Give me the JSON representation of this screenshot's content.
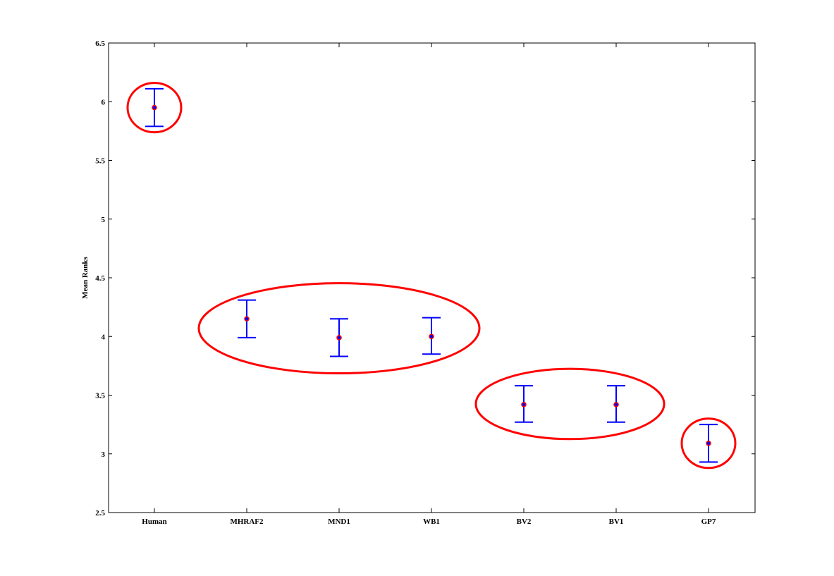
{
  "chart_data": {
    "type": "scatter",
    "title": "",
    "xlabel": "",
    "ylabel": "Mean Ranks",
    "ylim": [
      2.5,
      6.5
    ],
    "yticks": [
      "2.5",
      "3",
      "3.5",
      "4",
      "4.5",
      "5",
      "5.5",
      "6",
      "6.5"
    ],
    "categories": [
      "Human",
      "MHRAF2",
      "MND1",
      "WB1",
      "BV2",
      "BV1",
      "GP7"
    ],
    "series": [
      {
        "means": [
          5.95,
          4.15,
          3.99,
          4.0,
          3.42,
          3.42,
          3.09
        ],
        "lower": [
          5.79,
          3.99,
          3.83,
          3.85,
          3.27,
          3.27,
          2.93
        ],
        "upper": [
          6.11,
          4.31,
          4.15,
          4.16,
          3.58,
          3.58,
          3.25
        ]
      }
    ],
    "grid": false,
    "legend": "none",
    "groups": [
      {
        "members": [
          "Human"
        ]
      },
      {
        "members": [
          "MHRAF2",
          "MND1",
          "WB1"
        ]
      },
      {
        "members": [
          "BV2",
          "BV1"
        ]
      },
      {
        "members": [
          "GP7"
        ]
      }
    ],
    "colors": {
      "errorbar": "#0000ff",
      "marker_edge": "#ff0000",
      "marker_fill": "#0000ff",
      "group_outline": "#ff0000",
      "axes": "#000000"
    }
  }
}
